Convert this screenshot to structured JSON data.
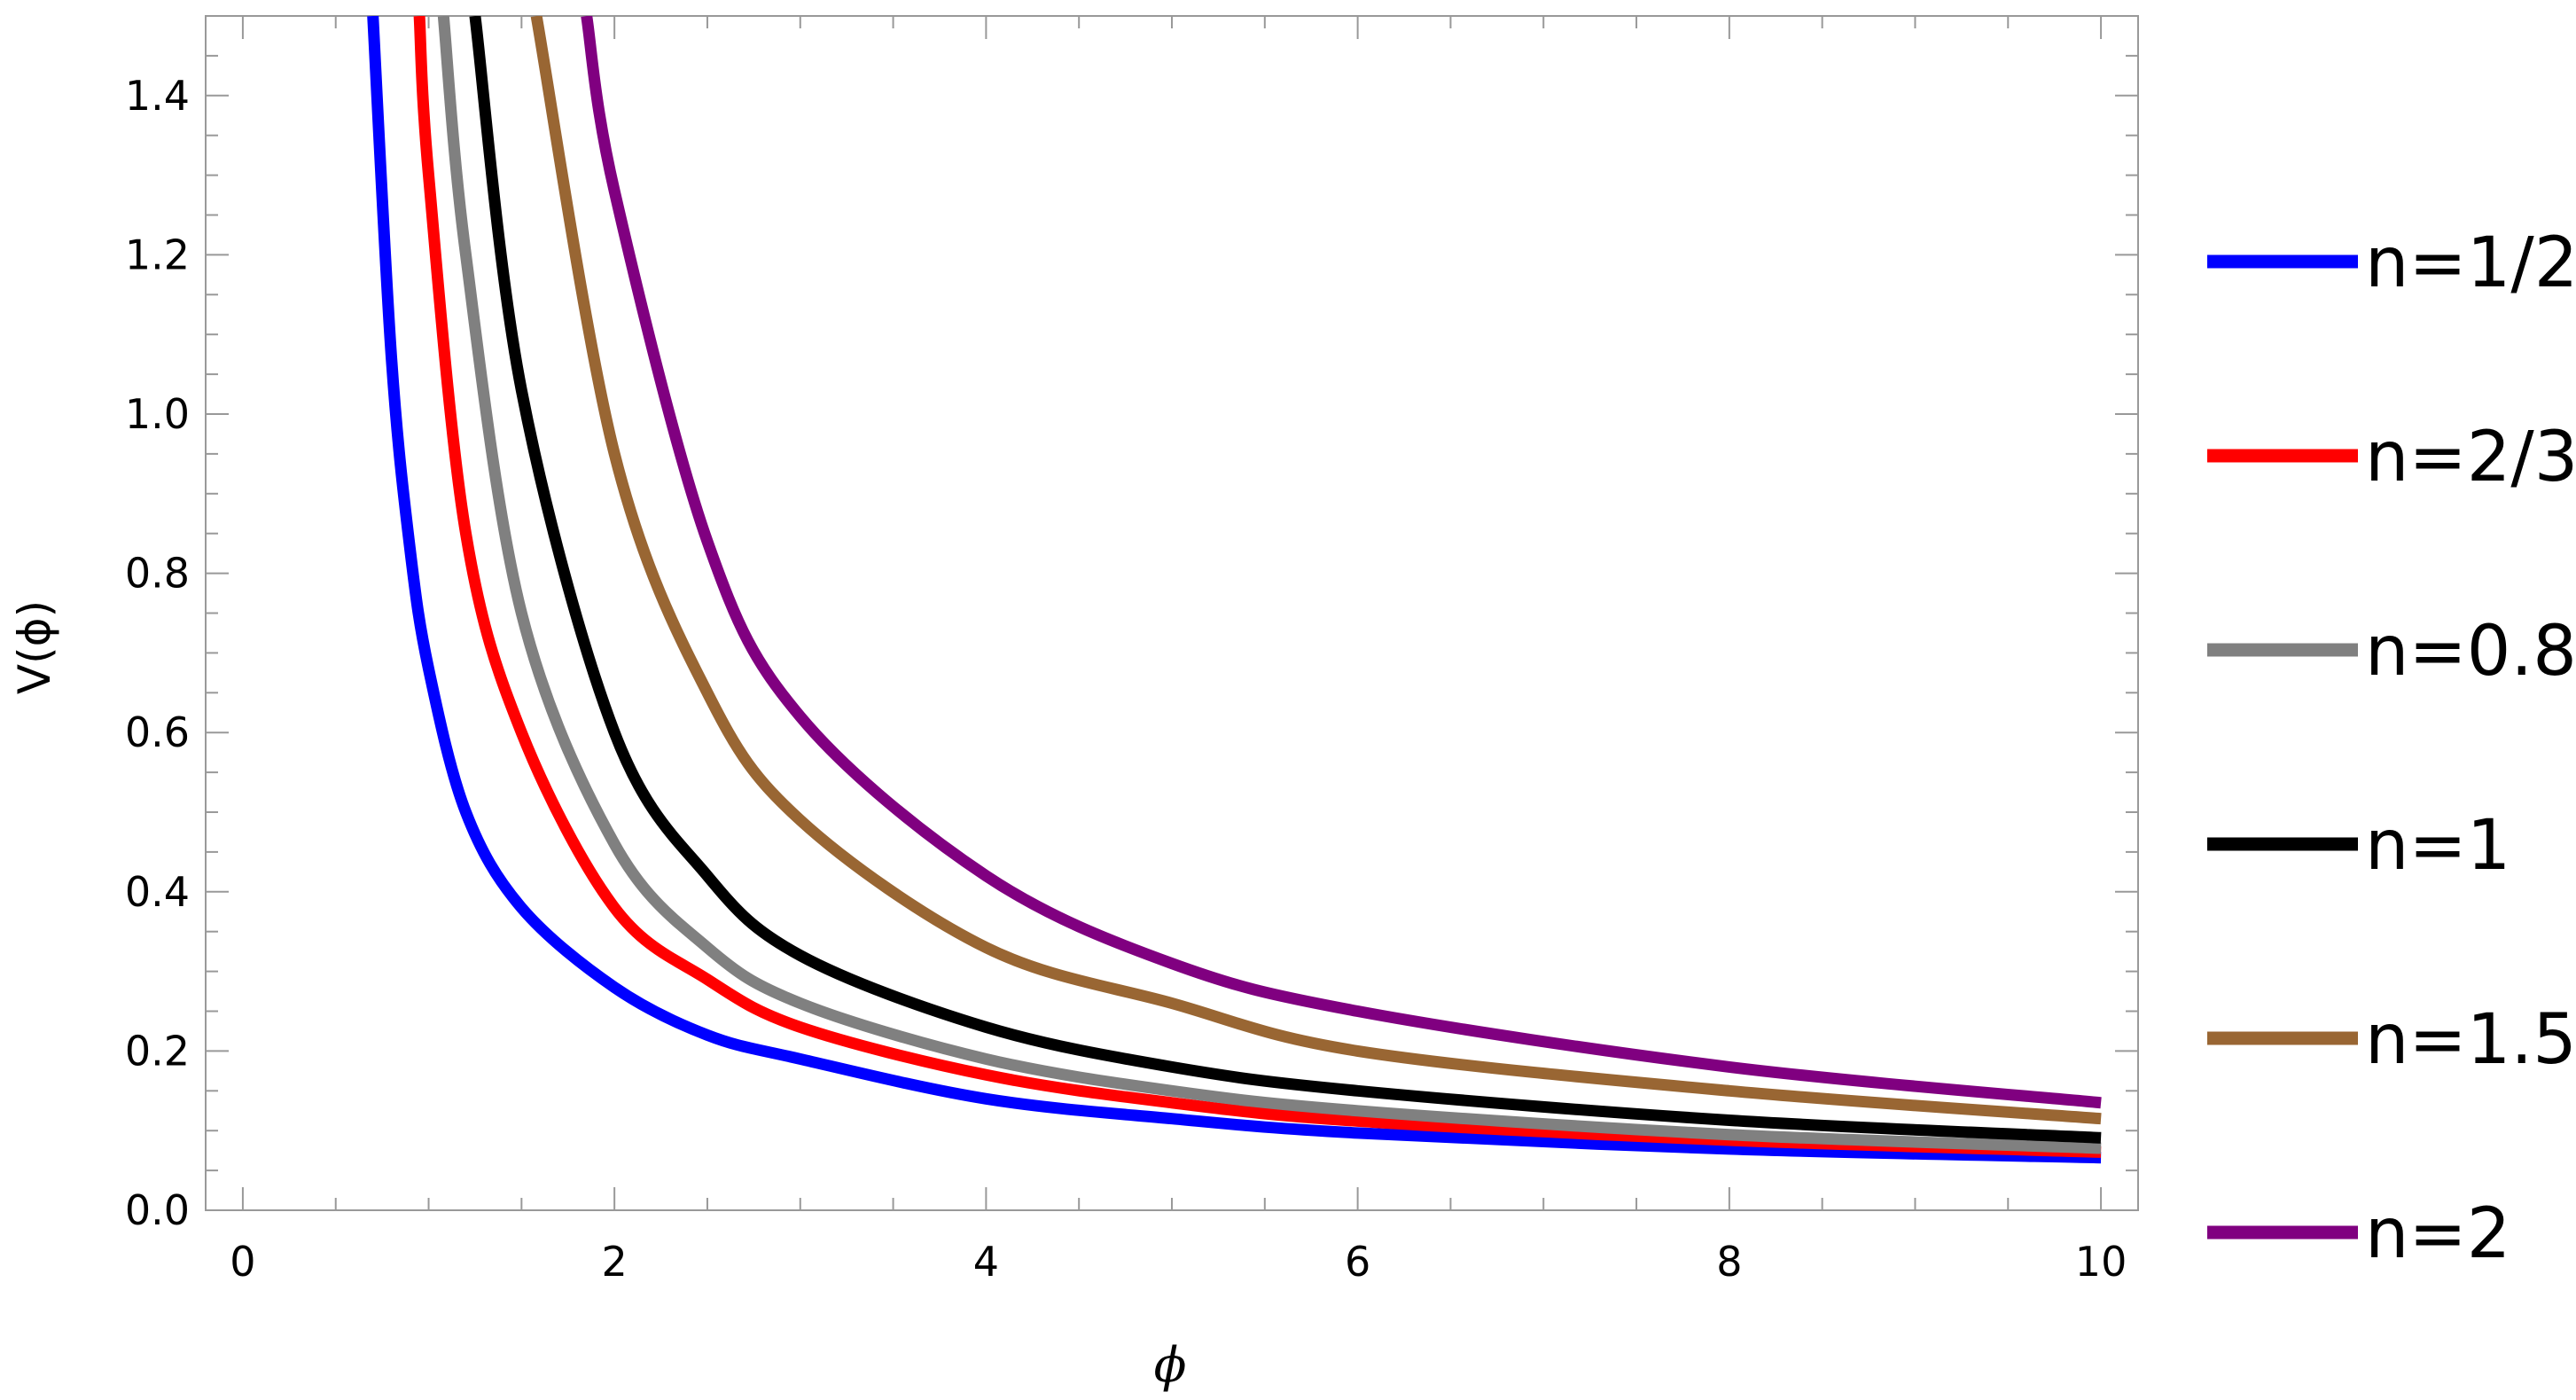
{
  "chart_data": {
    "type": "line",
    "title": "",
    "xlabel": "ϕ",
    "ylabel": "V(ϕ)",
    "xlim": [
      -0.2,
      10.2
    ],
    "ylim": [
      0,
      1.5
    ],
    "x_ticks": [
      0,
      2,
      4,
      6,
      8,
      10
    ],
    "x_tick_labels": [
      "0",
      "2",
      "4",
      "6",
      "8",
      "10"
    ],
    "y_ticks": [
      0.0,
      0.2,
      0.4,
      0.6,
      0.8,
      1.0,
      1.2,
      1.4
    ],
    "y_tick_labels": [
      "0.0",
      "0.2",
      "0.4",
      "0.6",
      "0.8",
      "1.0",
      "1.2",
      "1.4"
    ],
    "grid": false,
    "legend_position": "right",
    "series": [
      {
        "name": "n=1/2",
        "color": "#0000ff",
        "x": [
          0.7,
          0.8,
          0.9,
          1.0,
          1.2,
          1.5,
          2,
          2.5,
          3,
          4,
          5,
          6,
          8,
          10
        ],
        "values": [
          1.5,
          1.07,
          0.83,
          0.68,
          0.5,
          0.38,
          0.28,
          0.22,
          0.19,
          0.14,
          0.115,
          0.097,
          0.077,
          0.066
        ]
      },
      {
        "name": "n=2/3",
        "color": "#ff0000",
        "x": [
          0.95,
          1.0,
          1.2,
          1.5,
          2,
          2.5,
          3,
          4,
          5,
          6,
          8,
          10
        ],
        "values": [
          1.5,
          1.3,
          0.85,
          0.6,
          0.38,
          0.29,
          0.23,
          0.17,
          0.135,
          0.112,
          0.088,
          0.073
        ]
      },
      {
        "name": "n=0.8",
        "color": "#808080",
        "x": [
          1.08,
          1.2,
          1.5,
          2,
          2.5,
          3,
          4,
          5,
          6,
          8,
          10
        ],
        "values": [
          1.5,
          1.2,
          0.75,
          0.46,
          0.33,
          0.26,
          0.19,
          0.15,
          0.125,
          0.095,
          0.078
        ]
      },
      {
        "name": "n=1",
        "color": "#000000",
        "x": [
          1.25,
          1.5,
          2,
          2.5,
          3,
          4,
          5,
          6,
          8,
          10
        ],
        "values": [
          1.5,
          1.03,
          0.6,
          0.42,
          0.32,
          0.23,
          0.18,
          0.15,
          0.113,
          0.091
        ]
      },
      {
        "name": "n=1.5",
        "color": "#996633",
        "x": [
          1.58,
          2,
          2.5,
          3,
          4,
          5,
          6,
          8,
          10
        ],
        "values": [
          1.5,
          0.95,
          0.65,
          0.49,
          0.33,
          0.26,
          0.2,
          0.15,
          0.115
        ]
      },
      {
        "name": "n=2",
        "color": "#800080",
        "x": [
          1.85,
          2,
          2.5,
          3,
          4,
          5,
          6,
          8,
          10
        ],
        "values": [
          1.5,
          1.28,
          0.84,
          0.62,
          0.42,
          0.31,
          0.25,
          0.18,
          0.135
        ]
      }
    ]
  }
}
